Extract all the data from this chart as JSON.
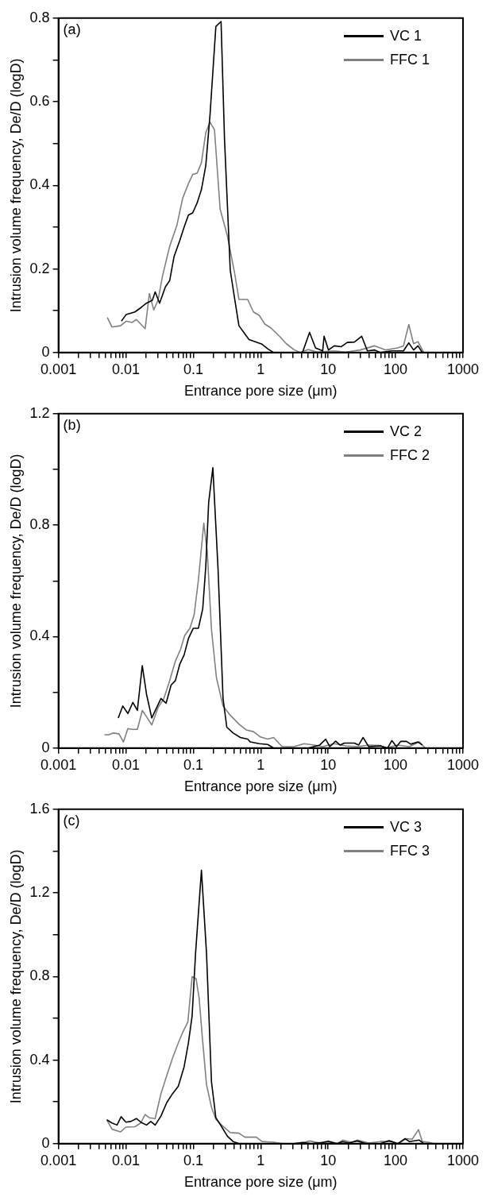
{
  "chart_data": [
    {
      "type": "line",
      "annotations": [
        "(a)"
      ],
      "xlabel": "Entrance pore size (μm)",
      "ylabel": "Intrusion volume frequency, De/D (logD)",
      "log": "x",
      "grid": false,
      "legend": "top right",
      "marker": "none",
      "line_style": "solid",
      "xlim": [
        0.001,
        1000
      ],
      "ylim": [
        0,
        0.8
      ],
      "xticks": [
        0.001,
        {
          "value": 0.002,
          "label": null
        },
        {
          "value": 0.003,
          "label": null
        },
        {
          "value": 0.004,
          "label": null
        },
        {
          "value": 0.005,
          "label": null
        },
        {
          "value": 0.006,
          "label": null
        },
        {
          "value": 0.007,
          "label": null
        },
        {
          "value": 0.008,
          "label": null
        },
        {
          "value": 0.009,
          "label": null
        },
        0.01,
        {
          "value": 0.02,
          "label": null
        },
        {
          "value": 0.03,
          "label": null
        },
        {
          "value": 0.04,
          "label": null
        },
        {
          "value": 0.05,
          "label": null
        },
        {
          "value": 0.06,
          "label": null
        },
        {
          "value": 0.07,
          "label": null
        },
        {
          "value": 0.08,
          "label": null
        },
        {
          "value": 0.09,
          "label": null
        },
        0.1,
        {
          "value": 0.2,
          "label": null
        },
        {
          "value": 0.3,
          "label": null
        },
        {
          "value": 0.4,
          "label": null
        },
        {
          "value": 0.5,
          "label": null
        },
        {
          "value": 0.6,
          "label": null
        },
        {
          "value": 0.7,
          "label": null
        },
        {
          "value": 0.8,
          "label": null
        },
        {
          "value": 0.9,
          "label": null
        },
        1,
        {
          "value": 2,
          "label": null
        },
        {
          "value": 3,
          "label": null
        },
        {
          "value": 4,
          "label": null
        },
        {
          "value": 5,
          "label": null
        },
        {
          "value": 6,
          "label": null
        },
        {
          "value": 7,
          "label": null
        },
        {
          "value": 8,
          "label": null
        },
        {
          "value": 9,
          "label": null
        },
        10,
        {
          "value": 20,
          "label": null
        },
        {
          "value": 30,
          "label": null
        },
        {
          "value": 40,
          "label": null
        },
        {
          "value": 50,
          "label": null
        },
        {
          "value": 60,
          "label": null
        },
        {
          "value": 70,
          "label": null
        },
        {
          "value": 80,
          "label": null
        },
        {
          "value": 90,
          "label": null
        },
        100,
        {
          "value": 200,
          "label": null
        },
        {
          "value": 300,
          "label": null
        },
        {
          "value": 400,
          "label": null
        },
        {
          "value": 500,
          "label": null
        },
        {
          "value": 600,
          "label": null
        },
        {
          "value": 700,
          "label": null
        },
        {
          "value": 800,
          "label": null
        },
        {
          "value": 900,
          "label": null
        },
        1000
      ],
      "yticks": [
        0,
        {
          "value": 0.1,
          "label": null
        },
        0.2,
        {
          "value": 0.3,
          "label": null
        },
        0.4,
        {
          "value": 0.5,
          "label": null
        },
        0.6,
        {
          "value": 0.7,
          "label": null
        },
        0.8
      ],
      "series": [
        {
          "name": "VC 1",
          "color": "#000000",
          "x": [
            0.0086,
            0.0101,
            0.0136,
            0.0166,
            0.0202,
            0.0247,
            0.0272,
            0.0316,
            0.0385,
            0.0446,
            0.0517,
            0.063,
            0.073,
            0.0846,
            0.098,
            0.114,
            0.132,
            0.153,
            0.177,
            0.216,
            0.258,
            0.29,
            0.353,
            0.41,
            0.475,
            0.55,
            0.67,
            0.86,
            1.045,
            1.27,
            1.55,
            2.3,
            4.16,
            5.3,
            6.5,
            8.3,
            8.7,
            10.1,
            12.3,
            15.7,
            19.2,
            24.5,
            31.4,
            38.2,
            49,
            59.6,
            88,
            131,
            157,
            185,
            215,
            249
          ],
          "values": [
            0.075,
            0.091,
            0.097,
            0.107,
            0.118,
            0.125,
            0.145,
            0.118,
            0.157,
            0.172,
            0.229,
            0.268,
            0.3,
            0.329,
            0.334,
            0.358,
            0.39,
            0.447,
            0.569,
            0.78,
            0.792,
            0.512,
            0.197,
            0.129,
            0.064,
            0.05,
            0.031,
            0.025,
            0.02,
            0.009,
            0,
            0,
            0,
            0.048,
            0.011,
            0.004,
            0.039,
            0.006,
            0.016,
            0.014,
            0.024,
            0.025,
            0.039,
            0.004,
            0.006,
            0,
            0.004,
            0.004,
            0.023,
            0.006,
            0.016,
            0
          ]
        },
        {
          "name": "FFC 1",
          "color": "#808080",
          "x": [
            0.0053,
            0.0062,
            0.0083,
            0.0101,
            0.0124,
            0.0143,
            0.0193,
            0.0223,
            0.0259,
            0.03,
            0.0348,
            0.0446,
            0.057,
            0.0695,
            0.0846,
            0.098,
            0.114,
            0.132,
            0.153,
            0.177,
            0.206,
            0.25,
            0.32,
            0.41,
            0.475,
            0.64,
            0.78,
            0.95,
            1.15,
            1.41,
            1.89,
            2.4,
            3.1,
            3.8,
            5.1,
            6.8,
            12.3,
            18.2,
            29.8,
            49,
            72,
            107,
            131,
            157,
            185,
            215,
            262
          ],
          "values": [
            0.084,
            0.061,
            0.064,
            0.075,
            0.072,
            0.079,
            0.057,
            0.141,
            0.102,
            0.125,
            0.182,
            0.254,
            0.304,
            0.369,
            0.404,
            0.426,
            0.429,
            0.454,
            0.526,
            0.551,
            0.533,
            0.343,
            0.279,
            0.19,
            0.127,
            0.127,
            0.097,
            0.089,
            0.068,
            0.059,
            0.039,
            0.021,
            0.007,
            0,
            0.007,
            0.001,
            0.004,
            0.001,
            0.006,
            0.016,
            0.006,
            0.011,
            0.016,
            0.067,
            0.021,
            0.026,
            0
          ]
        }
      ]
    },
    {
      "type": "line",
      "annotations": [
        "(b)"
      ],
      "xlabel": "Entrance pore size (μm)",
      "ylabel": "Intrusion volume frequency, De/D (logD)",
      "log": "x",
      "grid": false,
      "legend": "top right",
      "marker": "none",
      "line_style": "solid",
      "xlim": [
        0.001,
        1000
      ],
      "ylim": [
        0,
        1.2
      ],
      "xticks": [
        0.001,
        {
          "value": 0.002,
          "label": null
        },
        {
          "value": 0.003,
          "label": null
        },
        {
          "value": 0.004,
          "label": null
        },
        {
          "value": 0.005,
          "label": null
        },
        {
          "value": 0.006,
          "label": null
        },
        {
          "value": 0.007,
          "label": null
        },
        {
          "value": 0.008,
          "label": null
        },
        {
          "value": 0.009,
          "label": null
        },
        0.01,
        {
          "value": 0.02,
          "label": null
        },
        {
          "value": 0.03,
          "label": null
        },
        {
          "value": 0.04,
          "label": null
        },
        {
          "value": 0.05,
          "label": null
        },
        {
          "value": 0.06,
          "label": null
        },
        {
          "value": 0.07,
          "label": null
        },
        {
          "value": 0.08,
          "label": null
        },
        {
          "value": 0.09,
          "label": null
        },
        0.1,
        {
          "value": 0.2,
          "label": null
        },
        {
          "value": 0.3,
          "label": null
        },
        {
          "value": 0.4,
          "label": null
        },
        {
          "value": 0.5,
          "label": null
        },
        {
          "value": 0.6,
          "label": null
        },
        {
          "value": 0.7,
          "label": null
        },
        {
          "value": 0.8,
          "label": null
        },
        {
          "value": 0.9,
          "label": null
        },
        1,
        {
          "value": 2,
          "label": null
        },
        {
          "value": 3,
          "label": null
        },
        {
          "value": 4,
          "label": null
        },
        {
          "value": 5,
          "label": null
        },
        {
          "value": 6,
          "label": null
        },
        {
          "value": 7,
          "label": null
        },
        {
          "value": 8,
          "label": null
        },
        {
          "value": 9,
          "label": null
        },
        10,
        {
          "value": 20,
          "label": null
        },
        {
          "value": 30,
          "label": null
        },
        {
          "value": 40,
          "label": null
        },
        {
          "value": 50,
          "label": null
        },
        {
          "value": 60,
          "label": null
        },
        {
          "value": 70,
          "label": null
        },
        {
          "value": 80,
          "label": null
        },
        {
          "value": 90,
          "label": null
        },
        100,
        {
          "value": 200,
          "label": null
        },
        {
          "value": 300,
          "label": null
        },
        {
          "value": 400,
          "label": null
        },
        {
          "value": 500,
          "label": null
        },
        {
          "value": 600,
          "label": null
        },
        {
          "value": 700,
          "label": null
        },
        {
          "value": 800,
          "label": null
        },
        {
          "value": 900,
          "label": null
        },
        1000
      ],
      "yticks": [
        0,
        {
          "value": 0.2,
          "label": null
        },
        0.4,
        {
          "value": 0.6,
          "label": null
        },
        0.8,
        {
          "value": 1.0,
          "label": null
        },
        1.2
      ],
      "series": [
        {
          "name": "VC 2",
          "color": "#000000",
          "x": [
            0.0077,
            0.009,
            0.0107,
            0.0127,
            0.0148,
            0.0175,
            0.0202,
            0.0242,
            0.0286,
            0.0331,
            0.0395,
            0.0468,
            0.0542,
            0.063,
            0.073,
            0.0846,
            0.1,
            0.119,
            0.138,
            0.153,
            0.169,
            0.195,
            0.233,
            0.276,
            0.314,
            0.39,
            0.5,
            0.64,
            0.7,
            0.95,
            1.27,
            1.55,
            3.1,
            5.1,
            7.5,
            9.2,
            10.6,
            12.9,
            15,
            17.4,
            24.5,
            28.4,
            33,
            40,
            59.6,
            76,
            88,
            103,
            119,
            145,
            168,
            215,
            249
          ],
          "values": [
            0.108,
            0.151,
            0.124,
            0.164,
            0.135,
            0.296,
            0.194,
            0.108,
            0.145,
            0.178,
            0.161,
            0.226,
            0.242,
            0.301,
            0.334,
            0.393,
            0.43,
            0.43,
            0.5,
            0.651,
            0.882,
            1.006,
            0.64,
            0.178,
            0.075,
            0.054,
            0.038,
            0.032,
            0.022,
            0.016,
            0.013,
            0,
            0,
            0,
            0.011,
            0.032,
            0.005,
            0.025,
            0.011,
            0.018,
            0.018,
            0.011,
            0.038,
            0.005,
            0.008,
            0,
            0.027,
            0.005,
            0.024,
            0.024,
            0.014,
            0.022,
            0.011
          ]
        },
        {
          "name": "FFC 2",
          "color": "#808080",
          "x": [
            0.0048,
            0.0056,
            0.0065,
            0.0079,
            0.0092,
            0.0107,
            0.0124,
            0.0148,
            0.0175,
            0.0202,
            0.0242,
            0.03,
            0.0366,
            0.0446,
            0.0542,
            0.0648,
            0.0745,
            0.089,
            0.103,
            0.119,
            0.143,
            0.161,
            0.186,
            0.22,
            0.276,
            0.353,
            0.475,
            0.61,
            0.78,
            0.99,
            1.27,
            1.55,
            2.08,
            3.1,
            4.4,
            6.2,
            8.3,
            12.3,
            18.2,
            27,
            40,
            59.6,
            72.6,
            108,
            160,
            225,
            275
          ],
          "values": [
            0.048,
            0.048,
            0.054,
            0.051,
            0.022,
            0.07,
            0.067,
            0.067,
            0.135,
            0.113,
            0.083,
            0.145,
            0.178,
            0.242,
            0.312,
            0.355,
            0.404,
            0.43,
            0.479,
            0.603,
            0.807,
            0.705,
            0.425,
            0.253,
            0.151,
            0.118,
            0.086,
            0.065,
            0.059,
            0.04,
            0.032,
            0.038,
            0.005,
            0.005,
            0.016,
            0.011,
            0.005,
            0.016,
            0.008,
            0.005,
            0.011,
            0.009,
            0,
            0.011,
            0.005,
            0.022,
            0
          ]
        }
      ]
    },
    {
      "type": "line",
      "annotations": [
        "(c)"
      ],
      "xlabel": "Entrance pore size (μm)",
      "ylabel": "Intrusion volume frequency, De/D (logD)",
      "log": "x",
      "grid": false,
      "legend": "top right",
      "marker": "none",
      "line_style": "solid",
      "xlim": [
        0.001,
        1000
      ],
      "ylim": [
        0,
        1.6
      ],
      "xticks": [
        0.001,
        {
          "value": 0.002,
          "label": null
        },
        {
          "value": 0.003,
          "label": null
        },
        {
          "value": 0.004,
          "label": null
        },
        {
          "value": 0.005,
          "label": null
        },
        {
          "value": 0.006,
          "label": null
        },
        {
          "value": 0.007,
          "label": null
        },
        {
          "value": 0.008,
          "label": null
        },
        {
          "value": 0.009,
          "label": null
        },
        0.01,
        {
          "value": 0.02,
          "label": null
        },
        {
          "value": 0.03,
          "label": null
        },
        {
          "value": 0.04,
          "label": null
        },
        {
          "value": 0.05,
          "label": null
        },
        {
          "value": 0.06,
          "label": null
        },
        {
          "value": 0.07,
          "label": null
        },
        {
          "value": 0.08,
          "label": null
        },
        {
          "value": 0.09,
          "label": null
        },
        0.1,
        {
          "value": 0.2,
          "label": null
        },
        {
          "value": 0.3,
          "label": null
        },
        {
          "value": 0.4,
          "label": null
        },
        {
          "value": 0.5,
          "label": null
        },
        {
          "value": 0.6,
          "label": null
        },
        {
          "value": 0.7,
          "label": null
        },
        {
          "value": 0.8,
          "label": null
        },
        {
          "value": 0.9,
          "label": null
        },
        1,
        {
          "value": 2,
          "label": null
        },
        {
          "value": 3,
          "label": null
        },
        {
          "value": 4,
          "label": null
        },
        {
          "value": 5,
          "label": null
        },
        {
          "value": 6,
          "label": null
        },
        {
          "value": 7,
          "label": null
        },
        {
          "value": 8,
          "label": null
        },
        {
          "value": 9,
          "label": null
        },
        10,
        {
          "value": 20,
          "label": null
        },
        {
          "value": 30,
          "label": null
        },
        {
          "value": 40,
          "label": null
        },
        {
          "value": 50,
          "label": null
        },
        {
          "value": 60,
          "label": null
        },
        {
          "value": 70,
          "label": null
        },
        {
          "value": 80,
          "label": null
        },
        {
          "value": 90,
          "label": null
        },
        100,
        {
          "value": 200,
          "label": null
        },
        {
          "value": 300,
          "label": null
        },
        {
          "value": 400,
          "label": null
        },
        {
          "value": 500,
          "label": null
        },
        {
          "value": 600,
          "label": null
        },
        {
          "value": 700,
          "label": null
        },
        {
          "value": 800,
          "label": null
        },
        {
          "value": 900,
          "label": null
        },
        1000
      ],
      "yticks": [
        0,
        {
          "value": 0.2,
          "label": null
        },
        0.4,
        {
          "value": 0.6,
          "label": null
        },
        0.8,
        {
          "value": 1.0,
          "label": null
        },
        1.2,
        {
          "value": 1.4,
          "label": null
        },
        1.6
      ],
      "series": [
        {
          "name": "VC 3",
          "color": "#000000",
          "x": [
            0.0052,
            0.0062,
            0.0074,
            0.0085,
            0.01,
            0.0118,
            0.0143,
            0.0166,
            0.0202,
            0.0234,
            0.0272,
            0.0331,
            0.0403,
            0.0492,
            0.0599,
            0.073,
            0.0846,
            0.096,
            0.108,
            0.132,
            0.157,
            0.186,
            0.216,
            0.263,
            0.32,
            0.39,
            0.475,
            1.15,
            3.1,
            4.16,
            5.6,
            8.3,
            10.1,
            13.6,
            16.5,
            20.1,
            27,
            36.4,
            59.6,
            80,
            108,
            138,
            160,
            225,
            262
          ],
          "values": [
            0.114,
            0.099,
            0.089,
            0.129,
            0.103,
            0.106,
            0.12,
            0.103,
            0.089,
            0.106,
            0.089,
            0.132,
            0.196,
            0.239,
            0.275,
            0.367,
            0.482,
            0.611,
            0.911,
            1.308,
            0.911,
            0.296,
            0.124,
            0.081,
            0.036,
            0.01,
            0,
            0,
            0,
            0.006,
            0,
            0.006,
            0.01,
            0,
            0.01,
            0.003,
            0.013,
            0,
            0,
            0.014,
            0,
            0.024,
            0.01,
            0.017,
            0
          ]
        },
        {
          "name": "FFC 3",
          "color": "#808080",
          "x": [
            0.0053,
            0.0062,
            0.0083,
            0.01,
            0.0136,
            0.0166,
            0.0193,
            0.0223,
            0.0272,
            0.0331,
            0.0403,
            0.0492,
            0.0599,
            0.0695,
            0.083,
            0.096,
            0.11,
            0.122,
            0.136,
            0.157,
            0.186,
            0.216,
            0.263,
            0.353,
            0.475,
            0.58,
            0.86,
            1.045,
            1.55,
            2.08,
            3.77,
            5.3,
            7.5,
            10.1,
            13.6,
            16.5,
            22.2,
            27,
            40,
            59.6,
            88,
            108,
            145,
            176,
            219,
            249,
            318,
            369
          ],
          "values": [
            0.11,
            0.07,
            0.056,
            0.079,
            0.081,
            0.099,
            0.139,
            0.124,
            0.12,
            0.239,
            0.325,
            0.41,
            0.482,
            0.532,
            0.582,
            0.799,
            0.789,
            0.696,
            0.51,
            0.282,
            0.174,
            0.117,
            0.089,
            0.053,
            0.05,
            0.031,
            0.031,
            0.01,
            0.007,
            0,
            0,
            0.013,
            0.003,
            0.013,
            0,
            0.017,
            0.006,
            0.017,
            0.003,
            0.01,
            0.01,
            0,
            0.024,
            0.021,
            0.067,
            0.01,
            0.006,
            0
          ]
        }
      ]
    }
  ]
}
